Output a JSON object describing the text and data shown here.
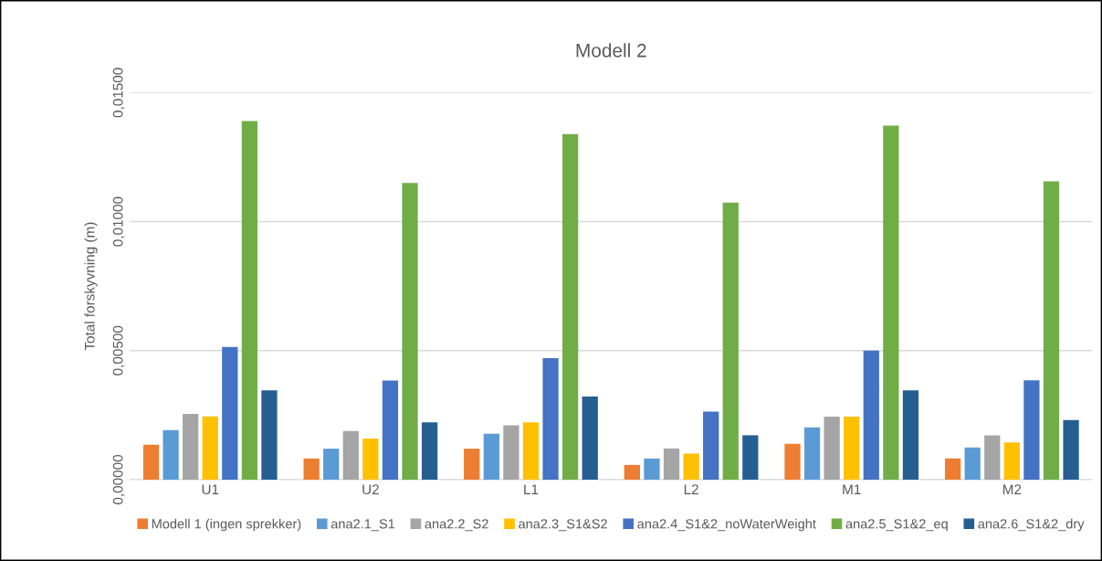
{
  "chart_data": {
    "type": "bar",
    "title": "Modell 2",
    "ylabel": "Total forskyvning (m)",
    "categories": [
      "U1",
      "U2",
      "L1",
      "L2",
      "M1",
      "M2"
    ],
    "series": [
      {
        "name": "Modell 1 (ingen sprekker)",
        "color": "#ed7d31",
        "values": [
          0.00135,
          0.00082,
          0.0012,
          0.00057,
          0.00139,
          0.00082
        ]
      },
      {
        "name": "ana2.1_S1",
        "color": "#5b9bd5",
        "values": [
          0.00192,
          0.0012,
          0.00178,
          0.00082,
          0.00203,
          0.00125
        ]
      },
      {
        "name": "ana2.2_S2",
        "color": "#a5a5a5",
        "values": [
          0.00255,
          0.00188,
          0.00211,
          0.00121,
          0.00244,
          0.00172
        ]
      },
      {
        "name": "ana2.3_S1&S2",
        "color": "#ffc000",
        "values": [
          0.00245,
          0.00159,
          0.00222,
          0.00101,
          0.00244,
          0.00144
        ]
      },
      {
        "name": "ana2.4_S1&2_noWaterWeight",
        "color": "#4472c4",
        "values": [
          0.00514,
          0.00384,
          0.00471,
          0.00264,
          0.005,
          0.00385
        ]
      },
      {
        "name": "ana2.5_S1&2_eq",
        "color": "#70ad47",
        "values": [
          0.0139,
          0.0115,
          0.01339,
          0.01074,
          0.01372,
          0.01156
        ]
      },
      {
        "name": "ana2.6_S1&2_dry",
        "color": "#255e91",
        "values": [
          0.00346,
          0.00222,
          0.00322,
          0.00172,
          0.00346,
          0.00231
        ]
      }
    ],
    "ylim": [
      0,
      0.015
    ],
    "yticks": [
      {
        "value": 0,
        "label": "0,00000"
      },
      {
        "value": 0.005,
        "label": "0,00500"
      },
      {
        "value": 0.01,
        "label": "0,01000"
      },
      {
        "value": 0.015,
        "label": "0,01500"
      }
    ],
    "grid": "y",
    "legend": "bottom"
  }
}
